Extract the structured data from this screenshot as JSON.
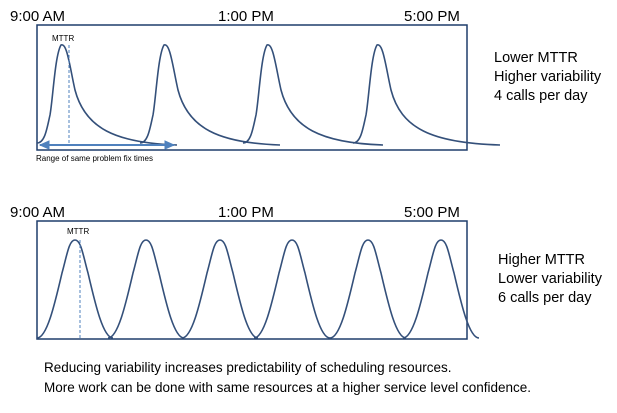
{
  "panel_top": {
    "times": [
      "9:00 AM",
      "1:00 PM",
      "5:00 PM"
    ],
    "mttr_label": "MTTR",
    "range_label": "Range of same problem fix times",
    "side_lines": [
      "Lower MTTR",
      "Higher variability",
      "4 calls per day"
    ],
    "calls": 4
  },
  "panel_bottom": {
    "times": [
      "9:00 AM",
      "1:00 PM",
      "5:00 PM"
    ],
    "mttr_label": "MTTR",
    "side_lines": [
      "Higher MTTR",
      "Lower variability",
      "6 calls per day"
    ],
    "calls": 6
  },
  "footer": {
    "line1": "Reducing variability increases predictability of scheduling resources.",
    "line2": "More work can be done with same resources at a higher service level confidence."
  },
  "colors": {
    "curve": "#34507a",
    "frame": "#1f3d6b",
    "arrow": "#4f81bd"
  }
}
